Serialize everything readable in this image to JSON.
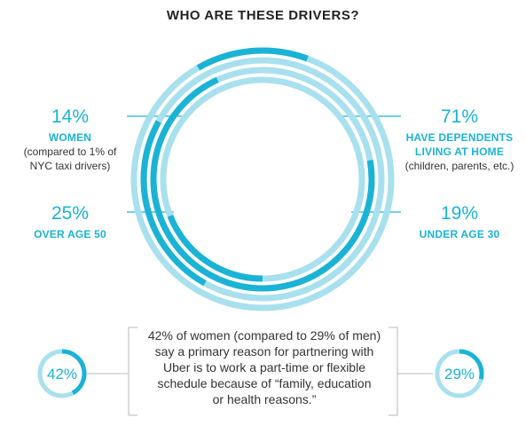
{
  "title": "WHO ARE THESE DRIVERS?",
  "colors": {
    "accent": "#1ab3d6",
    "light": "#a8e0ee",
    "text": "#333333"
  },
  "chart_data": {
    "type": "radial-bar",
    "rings": [
      {
        "value": 14,
        "pct": "14%",
        "label": "WOMEN",
        "note": "(compared to 1% of NYC taxi drivers)"
      },
      {
        "value": 25,
        "pct": "25%",
        "label": "OVER AGE 50",
        "note": ""
      },
      {
        "value": 71,
        "pct": "71%",
        "label": "HAVE DEPENDENTS LIVING AT HOME",
        "note": "(children, parents, etc.)"
      },
      {
        "value": 19,
        "pct": "19%",
        "label": "UNDER AGE 30",
        "note": ""
      }
    ],
    "comparison": [
      {
        "value": 42,
        "pct": "42%"
      },
      {
        "value": 29,
        "pct": "29%"
      }
    ]
  },
  "stats": {
    "women": {
      "pct": "14%",
      "label": "WOMEN",
      "note1": "(compared to 1% of",
      "note2": "NYC taxi drivers)"
    },
    "over50": {
      "pct": "25%",
      "label": "OVER AGE 50"
    },
    "dependents": {
      "pct": "71%",
      "label1": "HAVE DEPENDENTS",
      "label2": "LIVING AT HOME",
      "note": "(children, parents, etc.)"
    },
    "under30": {
      "pct": "19%",
      "label": "UNDER AGE 30"
    }
  },
  "quote": {
    "line1": "42% of women (compared to 29% of men)",
    "line2": "say a primary reason for partnering with",
    "line3": "Uber is to work a part-time or flexible",
    "line4": "schedule because of “family, education",
    "line5": "or health reasons.”"
  },
  "small": {
    "left": "42%",
    "right": "29%"
  }
}
